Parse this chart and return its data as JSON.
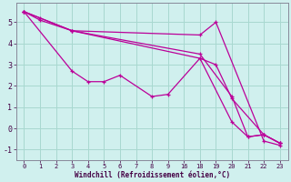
{
  "xlabel": "Windchill (Refroidissement éolien,°C)",
  "bg_color": "#d0f0ee",
  "line_color": "#bb0099",
  "grid_color": "#a8d8d0",
  "tick_values": [
    0,
    1,
    2,
    3,
    4,
    5,
    6,
    7,
    8,
    9,
    16,
    18,
    19,
    20,
    21,
    22,
    23
  ],
  "tick_labels": [
    "0",
    "1",
    "2",
    "3",
    "4",
    "5",
    "6",
    "7",
    "8",
    "9",
    "16",
    "18",
    "19",
    "20",
    "21",
    "22",
    "23"
  ],
  "lines": [
    {
      "xv": [
        0,
        1,
        3,
        18,
        19,
        22,
        23
      ],
      "y": [
        5.5,
        5.2,
        4.6,
        4.4,
        5.0,
        -0.6,
        -0.8
      ]
    },
    {
      "xv": [
        0,
        1,
        3,
        18,
        19,
        20,
        22,
        23
      ],
      "y": [
        5.5,
        5.1,
        4.6,
        3.3,
        3.0,
        1.4,
        -0.3,
        -0.7
      ]
    },
    {
      "xv": [
        0,
        3,
        4,
        5,
        6,
        8,
        9,
        18,
        20,
        21,
        22,
        23
      ],
      "y": [
        5.5,
        2.7,
        2.2,
        2.2,
        2.5,
        1.5,
        1.6,
        3.3,
        0.3,
        -0.4,
        -0.3,
        -0.7
      ]
    },
    {
      "xv": [
        0,
        3,
        18,
        20,
        21,
        22,
        23
      ],
      "y": [
        5.5,
        4.6,
        3.5,
        1.5,
        -0.4,
        -0.3,
        -0.7
      ]
    }
  ],
  "yticks": [
    -1,
    0,
    1,
    2,
    3,
    4,
    5
  ],
  "ylim": [
    -1.5,
    5.9
  ]
}
